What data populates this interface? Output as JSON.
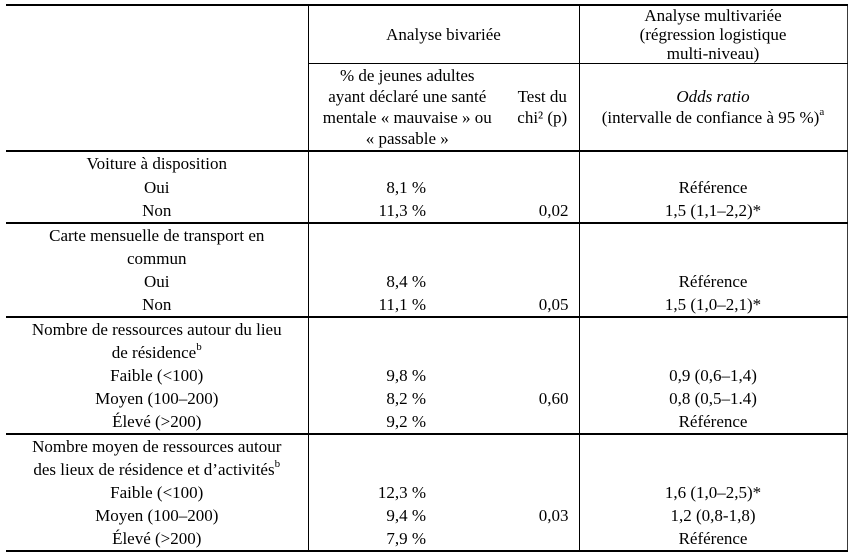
{
  "colors": {
    "background": "#ffffff",
    "text": "#000000",
    "rule": "#000000"
  },
  "table": {
    "header": {
      "bivariate": "Analyse bivariée",
      "multivariate_lines": [
        "Analyse multivariée",
        "(régression logistique",
        "multi-niveau)"
      ],
      "pct_lines": [
        "% de jeunes adultes",
        "ayant déclaré une santé",
        "mentale « mauvaise » ou",
        "« passable »"
      ],
      "chi_lines": [
        "Test du",
        "chi² (p)"
      ],
      "odds_title": "Odds ratio",
      "odds_sub": "(intervalle de confiance à 95 %)",
      "odds_sup": "a"
    },
    "sections": [
      {
        "label_lines": [
          "Voiture à disposition"
        ],
        "label_sup": "",
        "rows": [
          {
            "label": "Oui",
            "pct": "8,1 %",
            "p": "",
            "or": "Référence"
          },
          {
            "label": "Non",
            "pct": "11,3 %",
            "p": "0,02",
            "or": "1,5 (1,1–2,2)*"
          }
        ]
      },
      {
        "label_lines": [
          "Carte mensuelle de transport en",
          "commun"
        ],
        "label_sup": "",
        "rows": [
          {
            "label": "Oui",
            "pct": "8,4 %",
            "p": "",
            "or": "Référence"
          },
          {
            "label": "Non",
            "pct": "11,1 %",
            "p": "0,05",
            "or": "1,5 (1,0–2,1)*"
          }
        ]
      },
      {
        "label_lines": [
          "Nombre de ressources autour du lieu",
          "de résidence"
        ],
        "label_sup": "b",
        "rows": [
          {
            "label": "Faible (<100)",
            "pct": "9,8 %",
            "p": "",
            "or": "0,9 (0,6–1,4)"
          },
          {
            "label": "Moyen (100–200)",
            "pct": "8,2 %",
            "p": "0,60",
            "or": "0,8 (0,5–1.4)"
          },
          {
            "label": "Élevé (>200)",
            "pct": "9,2 %",
            "p": "",
            "or": "Référence"
          }
        ]
      },
      {
        "label_lines": [
          "Nombre moyen de ressources autour",
          "des lieux de résidence et d’activités"
        ],
        "label_sup": "b",
        "rows": [
          {
            "label": "Faible (<100)",
            "pct": "12,3 %",
            "p": "",
            "or": "1,6 (1,0–2,5)*"
          },
          {
            "label": "Moyen (100–200)",
            "pct": "9,4 %",
            "p": "0,03",
            "or": "1,2 (0,8-1,8)"
          },
          {
            "label": "Élevé (>200)",
            "pct": "7,9 %",
            "p": "",
            "or": "Référence"
          }
        ]
      }
    ]
  }
}
